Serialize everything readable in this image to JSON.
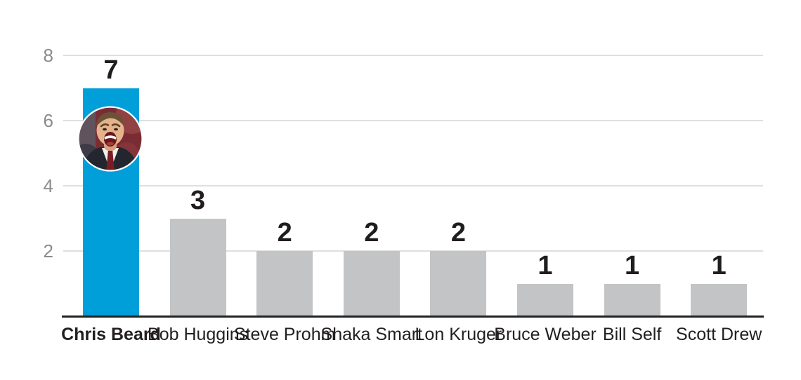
{
  "chart_data": {
    "type": "bar",
    "categories": [
      "Chris Beard",
      "Bob Huggins",
      "Steve Prohm",
      "Shaka Smart",
      "Lon Kruger",
      "Bruce Weber",
      "Bill Self",
      "Scott Drew"
    ],
    "values": [
      7,
      3,
      2,
      2,
      2,
      1,
      1,
      1
    ],
    "bar_labels": [
      "7",
      "3",
      "2",
      "2",
      "2",
      "1",
      "1",
      "1"
    ],
    "highlight_index": 0,
    "highlighted_category": "Chris Beard",
    "yticks": [
      8,
      6,
      4,
      2
    ],
    "ylim": [
      0,
      8
    ],
    "grid": true,
    "legend": "none",
    "title": "",
    "xlabel": "",
    "ylabel": "",
    "colors": {
      "highlight_bar": "#009fda",
      "default_bar": "#c3c4c6",
      "gridline": "#dfdfdf",
      "axis_line": "#232323",
      "tick_label": "#8a8b8d",
      "value_label": "#1f1d1e",
      "category_label": "#231f20"
    },
    "annotations": [
      {
        "type": "photo",
        "name": "chris-beard-portrait",
        "description": "circular photo of Chris Beard yelling, placed inside the highlighted blue bar"
      }
    ]
  }
}
